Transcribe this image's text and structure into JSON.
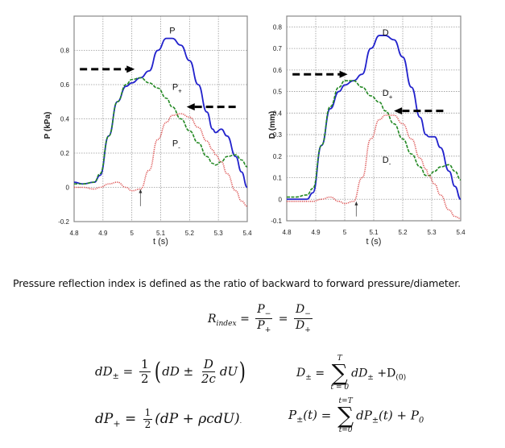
{
  "chart_data": [
    {
      "type": "line",
      "title": "",
      "xlabel": "t (s)",
      "ylabel": "P (kPa)",
      "xlim": [
        4.8,
        5.4
      ],
      "ylim": [
        -0.2,
        1.0
      ],
      "xticks": [
        "4.8",
        "4.9",
        "5",
        "5.1",
        "5.2",
        "5.3",
        "5.4"
      ],
      "yticks": [
        "-0.2",
        "0",
        "0.2",
        "0.4",
        "0.6",
        "0.8"
      ],
      "grid": true,
      "x": [
        4.8,
        4.83,
        4.87,
        4.89,
        4.92,
        4.95,
        4.98,
        5.0,
        5.03,
        5.06,
        5.09,
        5.12,
        5.14,
        5.17,
        5.2,
        5.23,
        5.26,
        5.28,
        5.29,
        5.31,
        5.33,
        5.36,
        5.38,
        5.4
      ],
      "series": [
        {
          "name": "P",
          "color": "#2222cc",
          "style": "solid",
          "values": [
            0.03,
            0.02,
            0.03,
            0.07,
            0.3,
            0.5,
            0.59,
            0.61,
            0.64,
            0.68,
            0.8,
            0.87,
            0.87,
            0.83,
            0.74,
            0.6,
            0.44,
            0.34,
            0.32,
            0.34,
            0.3,
            0.18,
            0.09,
            0.0
          ]
        },
        {
          "name": "P+",
          "color": "#228822",
          "style": "dashed",
          "values": [
            0.02,
            0.02,
            0.03,
            0.08,
            0.3,
            0.5,
            0.6,
            0.63,
            0.64,
            0.61,
            0.58,
            0.52,
            0.47,
            0.4,
            0.33,
            0.26,
            0.18,
            0.14,
            0.13,
            0.15,
            0.18,
            0.19,
            0.16,
            0.12
          ]
        },
        {
          "name": "P-",
          "color": "#dd5555",
          "style": "dotted",
          "values": [
            0.0,
            0.0,
            -0.01,
            0.0,
            0.02,
            0.03,
            0.0,
            -0.02,
            -0.01,
            0.1,
            0.28,
            0.38,
            0.42,
            0.43,
            0.41,
            0.35,
            0.27,
            0.22,
            0.19,
            0.15,
            0.08,
            -0.02,
            -0.08,
            -0.11
          ]
        }
      ],
      "annotations": [
        {
          "type": "arrow-right-dashed",
          "y": 0.69,
          "x_from": 4.82,
          "x_to": 5.01
        },
        {
          "type": "arrow-left-dashed",
          "y": 0.47,
          "x_from": 5.36,
          "x_to": 5.19
        },
        {
          "type": "arrow-up",
          "x": 5.03,
          "y_from": -0.11,
          "y_to": -0.01
        }
      ],
      "labels": [
        {
          "text": "P",
          "sub": "",
          "x": 5.13,
          "y": 0.9
        },
        {
          "text": "P",
          "sub": "+",
          "x": 5.14,
          "y": 0.57
        },
        {
          "text": "P",
          "sub": "-",
          "x": 5.14,
          "y": 0.24
        }
      ]
    },
    {
      "type": "line",
      "title": "",
      "xlabel": "t (s)",
      "ylabel": "D (mm)",
      "xlim": [
        4.8,
        5.4
      ],
      "ylim": [
        -0.1,
        0.85
      ],
      "xticks": [
        "4.8",
        "4.9",
        "5",
        "5.1",
        "5.2",
        "5.3",
        "5.4"
      ],
      "yticks": [
        "-0.1",
        "0",
        "0.1",
        "0.2",
        "0.3",
        "0.4",
        "0.5",
        "0.6",
        "0.7",
        "0.8"
      ],
      "grid": true,
      "x": [
        4.8,
        4.83,
        4.87,
        4.89,
        4.92,
        4.95,
        4.98,
        5.0,
        5.03,
        5.06,
        5.09,
        5.12,
        5.14,
        5.17,
        5.2,
        5.23,
        5.26,
        5.28,
        5.29,
        5.31,
        5.33,
        5.36,
        5.38,
        5.4
      ],
      "series": [
        {
          "name": "D",
          "color": "#2222cc",
          "style": "solid",
          "values": [
            0.0,
            0.0,
            0.0,
            0.03,
            0.25,
            0.42,
            0.5,
            0.53,
            0.55,
            0.58,
            0.7,
            0.76,
            0.76,
            0.74,
            0.66,
            0.52,
            0.38,
            0.3,
            0.29,
            0.29,
            0.24,
            0.13,
            0.06,
            0.0
          ]
        },
        {
          "name": "D+",
          "color": "#228822",
          "style": "dashed",
          "values": [
            0.01,
            0.01,
            0.02,
            0.05,
            0.25,
            0.43,
            0.52,
            0.55,
            0.55,
            0.52,
            0.48,
            0.45,
            0.41,
            0.35,
            0.28,
            0.21,
            0.15,
            0.11,
            0.11,
            0.13,
            0.15,
            0.16,
            0.13,
            0.09
          ]
        },
        {
          "name": "D-",
          "color": "#dd5555",
          "style": "dotted",
          "values": [
            -0.01,
            -0.01,
            -0.01,
            -0.01,
            0.0,
            0.01,
            -0.01,
            -0.02,
            -0.01,
            0.1,
            0.28,
            0.37,
            0.39,
            0.39,
            0.35,
            0.28,
            0.19,
            0.14,
            0.11,
            0.07,
            0.02,
            -0.05,
            -0.08,
            -0.09
          ]
        }
      ],
      "annotations": [
        {
          "type": "arrow-right-dashed",
          "y": 0.58,
          "x_from": 4.82,
          "x_to": 5.01
        },
        {
          "type": "arrow-left-dashed",
          "y": 0.41,
          "x_from": 5.34,
          "x_to": 5.17
        },
        {
          "type": "arrow-up",
          "x": 5.04,
          "y_from": -0.08,
          "y_to": -0.01
        }
      ],
      "labels": [
        {
          "text": "D",
          "sub": "",
          "x": 5.13,
          "y": 0.76
        },
        {
          "text": "D",
          "sub": "+",
          "x": 5.13,
          "y": 0.48
        },
        {
          "text": "D",
          "sub": "-",
          "x": 5.13,
          "y": 0.17
        }
      ]
    }
  ],
  "description": "Pressure reflection index is defined as the ratio of backward to forward pressure/diameter.",
  "equations": {
    "rindex": {
      "lhs": "R",
      "lhs_sub": "index",
      "eq": "=",
      "n1": "P",
      "n1_sub": "−",
      "d1": "P",
      "d1_sub": "+",
      "n2": "D",
      "n2_sub": "−",
      "d2": "D",
      "d2_sub": "+"
    },
    "dD": {
      "lhs": "dD",
      "lhs_sub": "±",
      "eq": "=",
      "half_num": "1",
      "half_den": "2",
      "lparen": "(",
      "t1": "dD ±",
      "f_num": "D",
      "f_den": "2c",
      "t2": "dU",
      "rparen": ")"
    },
    "Dsum": {
      "lhs": "D",
      "lhs_sub": "±",
      "eq": "=",
      "sum_top": "T",
      "sum_bot": "t = 0",
      "sigma": "∑",
      "term": "dD",
      "term_sub": "±",
      "plus": "+D",
      "plus_sub": "(0)"
    },
    "dP": {
      "lhs": "dP",
      "lhs_sub": "+",
      "eq": "=",
      "half_num": "1",
      "half_den": "2",
      "body": "(dP + ρcdU)",
      "trail": "."
    },
    "Psum": {
      "lhs": "P",
      "lhs_sub": "±",
      "lhs_arg": "(t)",
      "eq": "=",
      "sum_top": "t=T",
      "sum_bot": "t=0",
      "sigma": "∑",
      "term": "dP",
      "term_sub": "±",
      "term_arg": "(t) + P",
      "term_arg_sub": "0"
    }
  }
}
